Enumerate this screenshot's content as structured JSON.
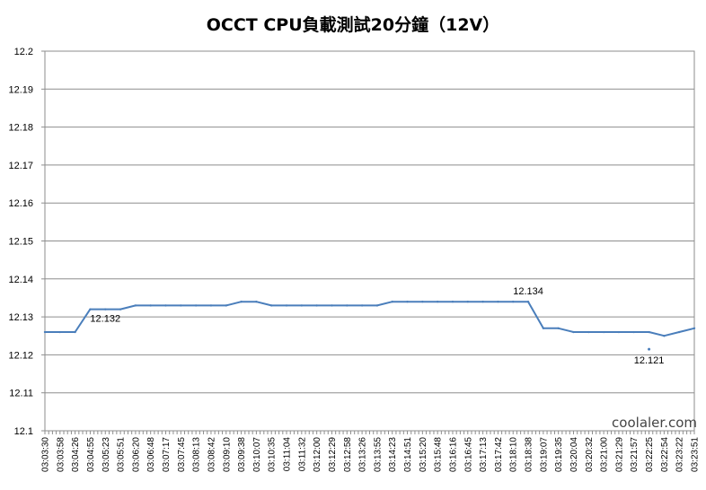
{
  "chart_data": {
    "type": "line",
    "title": "OCCT CPU負載測試20分鐘（12V）",
    "xlabel": "",
    "ylabel": "",
    "ylim": [
      12.1,
      12.2
    ],
    "yticks": [
      "12.1",
      "12.11",
      "12.12",
      "12.13",
      "12.14",
      "12.15",
      "12.16",
      "12.17",
      "12.18",
      "12.19",
      "12.2"
    ],
    "x": [
      "03:03:30",
      "03:03:58",
      "03:04:26",
      "03:04:55",
      "03:05:23",
      "03:05:51",
      "03:06:20",
      "03:06:48",
      "03:07:17",
      "03:07:45",
      "03:08:13",
      "03:08:42",
      "03:09:10",
      "03:09:38",
      "03:10:07",
      "03:10:35",
      "03:11:04",
      "03:11:32",
      "03:12:00",
      "03:12:29",
      "03:12:58",
      "03:13:26",
      "03:13:55",
      "03:14:23",
      "03:14:51",
      "03:15:20",
      "03:15:48",
      "03:16:16",
      "03:16:45",
      "03:17:13",
      "03:17:42",
      "03:18:10",
      "03:18:38",
      "03:19:07",
      "03:19:35",
      "03:20:04",
      "03:20:32",
      "03:21:00",
      "03:21:29",
      "03:21:57",
      "03:22:25",
      "03:22:54",
      "03:23:22",
      "03:23:51"
    ],
    "series": [
      {
        "values": [
          12.126,
          12.126,
          12.126,
          12.132,
          12.132,
          12.132,
          12.133,
          12.133,
          12.133,
          12.133,
          12.133,
          12.133,
          12.133,
          12.134,
          12.134,
          12.133,
          12.133,
          12.133,
          12.133,
          12.133,
          12.133,
          12.133,
          12.133,
          12.134,
          12.134,
          12.134,
          12.134,
          12.134,
          12.134,
          12.134,
          12.134,
          12.134,
          12.134,
          12.127,
          12.127,
          12.126,
          12.126,
          12.126,
          12.126,
          12.126,
          12.126,
          12.125,
          12.126,
          12.127
        ],
        "color": "#4a7ebb"
      }
    ],
    "annotations": [
      {
        "text": "12.132",
        "x": "03:05:23",
        "y": 12.132
      },
      {
        "text": "12.134",
        "x": "03:18:38",
        "y": 12.134
      },
      {
        "text": "12.121",
        "x": "03:22:25",
        "y": 12.121
      }
    ],
    "grid": true,
    "legend": "none"
  },
  "watermark": {
    "text": "coolaler.com"
  }
}
